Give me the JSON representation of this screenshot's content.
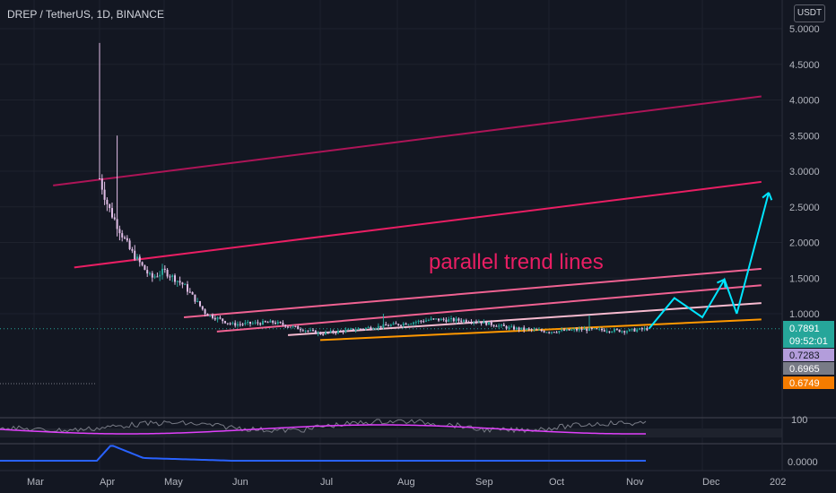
{
  "header": {
    "title": "DREP / TetherUS, 1D, BINANCE",
    "currency_button": "USDT"
  },
  "annotation": "parallel trend lines",
  "price_axis": {
    "ticks": [
      "5.0000",
      "4.5000",
      "4.0000",
      "3.5000",
      "3.0000",
      "2.5000",
      "2.0000",
      "1.5000",
      "1.0000"
    ],
    "labels": [
      {
        "text": "0.7891",
        "sub": "09:52:01",
        "color": "#26a69a"
      },
      {
        "text": "0.7283",
        "color": "#b39ddb"
      },
      {
        "text": "0.6965",
        "color": "#787b86"
      },
      {
        "text": "0.6749",
        "color": "#f57c00"
      }
    ]
  },
  "indicator_axis": {
    "rsi_tick": "100",
    "osc_tick": "0.0000"
  },
  "time_axis": [
    "Mar",
    "Apr",
    "May",
    "Jun",
    "Jul",
    "Aug",
    "Sep",
    "Oct",
    "Nov",
    "Dec",
    "202"
  ],
  "colors": {
    "up": "#26a69a",
    "down": "#ef5350",
    "accent": "#e91e63",
    "orange": "#ff9800",
    "cyan": "#00e5ff"
  },
  "chart_data": {
    "type": "candlestick",
    "symbol": "DREP / TetherUS",
    "interval": "1D",
    "exchange": "BINANCE",
    "price_range": [
      0.6,
      5.0
    ],
    "last_price": 0.7891,
    "closes_approx": [
      {
        "date": "Apr 1",
        "value": 2.9
      },
      {
        "date": "Apr 5",
        "value": 2.5
      },
      {
        "date": "Apr 15",
        "value": 1.9
      },
      {
        "date": "Apr 25",
        "value": 1.5
      },
      {
        "date": "May 1",
        "value": 1.6
      },
      {
        "date": "May 10",
        "value": 1.4
      },
      {
        "date": "May 20",
        "value": 1.0
      },
      {
        "date": "Jun 1",
        "value": 0.85
      },
      {
        "date": "Jun 15",
        "value": 0.88
      },
      {
        "date": "Jul 1",
        "value": 0.72
      },
      {
        "date": "Jul 15",
        "value": 0.78
      },
      {
        "date": "Aug 1",
        "value": 0.85
      },
      {
        "date": "Aug 15",
        "value": 0.92
      },
      {
        "date": "Sep 1",
        "value": 0.9
      },
      {
        "date": "Sep 15",
        "value": 0.8
      },
      {
        "date": "Oct 1",
        "value": 0.75
      },
      {
        "date": "Oct 15",
        "value": 0.78
      },
      {
        "date": "Nov 1",
        "value": 0.76
      },
      {
        "date": "Nov 10",
        "value": 0.79
      }
    ],
    "trend_lines": [
      {
        "color": "#ad1457",
        "from": [
          "Mar 10",
          2.8
        ],
        "to": [
          "Dec 25",
          4.05
        ]
      },
      {
        "color": "#e91e63",
        "from": [
          "Mar 20",
          1.65
        ],
        "to": [
          "Dec 25",
          2.85
        ]
      },
      {
        "color": "#f06292",
        "from": [
          "May 10",
          0.95
        ],
        "to": [
          "Dec 25",
          1.63
        ]
      },
      {
        "color": "#f06292",
        "from": [
          "May 25",
          0.75
        ],
        "to": [
          "Dec 25",
          1.4
        ]
      },
      {
        "color": "#f8bbd0",
        "from": [
          "Jun 20",
          0.7
        ],
        "to": [
          "Dec 25",
          1.15
        ]
      },
      {
        "color": "#ff9800",
        "from": [
          "Jul 1",
          0.63
        ],
        "to": [
          "Dec 25",
          0.92
        ]
      }
    ],
    "projection_path": [
      [
        "Nov 10",
        0.79
      ],
      [
        "Nov 20",
        1.22
      ],
      [
        "Dec 1",
        0.95
      ],
      [
        "Dec 10",
        1.48
      ],
      [
        "Dec 15",
        1.0
      ],
      [
        "Dec 28",
        2.7
      ]
    ]
  }
}
